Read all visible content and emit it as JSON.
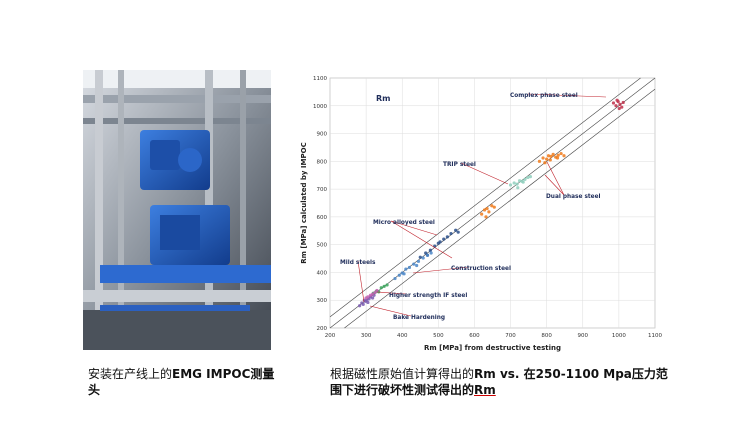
{
  "left_caption": {
    "segments": [
      "安装在产线上的",
      "EMG IMPOC测量头"
    ]
  },
  "right_caption": {
    "segments": [
      "根据磁性原始值计算得出的",
      "Rm vs. ",
      "在250-1100 Mpa压力范围下进行破坏性测试得出的",
      "Rm"
    ]
  },
  "chart_data": {
    "type": "scatter",
    "title": "Rm",
    "x_label": "Rm [MPa]  from destructive testing",
    "y_label": "Rm [MPa]   calculated  by  IMPOC",
    "xlim": [
      200,
      1100
    ],
    "ylim": [
      200,
      1100
    ],
    "xticks": [
      200,
      300,
      400,
      500,
      600,
      700,
      800,
      900,
      1000,
      1100
    ],
    "yticks": [
      200,
      300,
      400,
      500,
      600,
      700,
      800,
      900,
      1000,
      1100
    ],
    "grid": true,
    "reference_offsets": [
      -40,
      0,
      40
    ],
    "series": [
      {
        "name": "Complex phase steel",
        "color": "#c0304a",
        "x": [
          985,
          992,
          998,
          1003,
          1008,
          1012,
          995,
          1001
        ],
        "values": [
          1010,
          1000,
          1015,
          1005,
          995,
          1012,
          1020,
          990
        ]
      },
      {
        "name": "TRIP steel",
        "color": "#8fcfbd",
        "x": [
          700,
          710,
          718,
          725,
          732,
          740,
          748,
          755,
          720,
          735
        ],
        "values": [
          715,
          722,
          718,
          730,
          728,
          735,
          742,
          745,
          705,
          725
        ]
      },
      {
        "name": "Dual phase steel",
        "color": "#f07a1a",
        "x": [
          780,
          790,
          800,
          805,
          812,
          818,
          825,
          832,
          840,
          848,
          795,
          810,
          830,
          620,
          628,
          635,
          640,
          648,
          655,
          632
        ],
        "values": [
          800,
          812,
          808,
          820,
          818,
          825,
          815,
          822,
          828,
          820,
          795,
          805,
          812,
          610,
          625,
          630,
          618,
          640,
          635,
          600
        ]
      },
      {
        "name": "Micro alloyed steel",
        "color": "#2a4f8a",
        "x": [
          450,
          465,
          478,
          490,
          505,
          515,
          525,
          535,
          548,
          555,
          470,
          500
        ],
        "values": [
          455,
          470,
          480,
          495,
          510,
          520,
          528,
          540,
          552,
          545,
          462,
          505
        ]
      },
      {
        "name": "Construction steel",
        "color": "#4a86c8",
        "x": [
          380,
          392,
          400,
          410,
          420,
          432,
          445,
          458,
          470,
          480,
          405,
          440
        ],
        "values": [
          378,
          390,
          398,
          412,
          418,
          430,
          440,
          452,
          462,
          470,
          395,
          425
        ]
      },
      {
        "name": "Mild steels",
        "color": "#7a5cb0",
        "x": [
          282,
          288,
          292,
          298,
          302,
          308,
          312,
          318,
          322,
          295,
          305
        ],
        "values": [
          280,
          290,
          285,
          296,
          300,
          305,
          312,
          308,
          318,
          300,
          292
        ]
      },
      {
        "name": "Higher strength IF steel",
        "color": "#3aa55a",
        "x": [
          320,
          328,
          335,
          342,
          350,
          358
        ],
        "values": [
          325,
          332,
          330,
          345,
          350,
          355
        ]
      },
      {
        "name": "Bake Hardening",
        "color": "#c05fb0",
        "x": [
          300,
          305,
          312,
          318,
          325,
          330
        ],
        "values": [
          308,
          312,
          318,
          322,
          328,
          335
        ]
      }
    ]
  }
}
